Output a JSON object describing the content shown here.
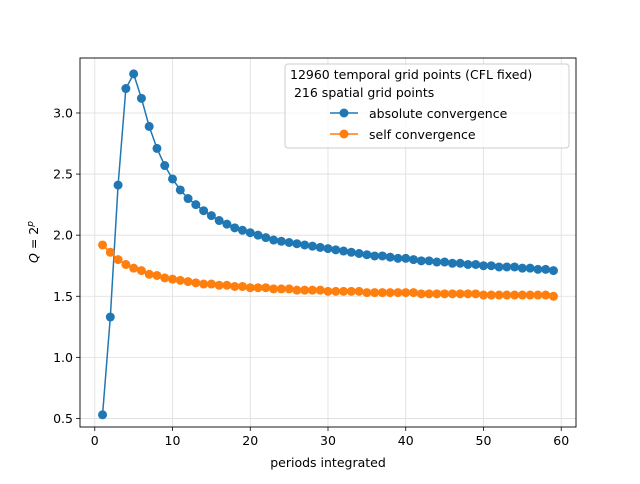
{
  "chart_data": {
    "type": "line",
    "xlabel": "periods integrated",
    "ylabel": "Q = 2^p",
    "xlim": [
      -1.9,
      61.9
    ],
    "ylim": [
      0.43,
      3.45
    ],
    "xticks": [
      0,
      10,
      20,
      30,
      40,
      50,
      60
    ],
    "xtick_labels": [
      "0",
      "10",
      "20",
      "30",
      "40",
      "50",
      "60"
    ],
    "yticks": [
      0.5,
      1.0,
      1.5,
      2.0,
      2.5,
      3.0
    ],
    "ytick_labels": [
      "0.5",
      "1.0",
      "1.5",
      "2.0",
      "2.5",
      "3.0"
    ],
    "grid": true,
    "legend": {
      "placement": "upper-right",
      "title_lines": [
        "12960 temporal grid points (CFL fixed)",
        " 216 spatial grid points"
      ]
    },
    "x": [
      1,
      2,
      3,
      4,
      5,
      6,
      7,
      8,
      9,
      10,
      11,
      12,
      13,
      14,
      15,
      16,
      17,
      18,
      19,
      20,
      21,
      22,
      23,
      24,
      25,
      26,
      27,
      28,
      29,
      30,
      31,
      32,
      33,
      34,
      35,
      36,
      37,
      38,
      39,
      40,
      41,
      42,
      43,
      44,
      45,
      46,
      47,
      48,
      49,
      50,
      51,
      52,
      53,
      54,
      55,
      56,
      57,
      58,
      59
    ],
    "series": [
      {
        "name": "absolute convergence",
        "color": "#1f77b4",
        "values": [
          0.53,
          1.33,
          2.41,
          3.2,
          3.32,
          3.12,
          2.89,
          2.71,
          2.57,
          2.46,
          2.37,
          2.3,
          2.25,
          2.2,
          2.16,
          2.12,
          2.09,
          2.06,
          2.04,
          2.02,
          2.0,
          1.98,
          1.96,
          1.95,
          1.94,
          1.93,
          1.92,
          1.91,
          1.9,
          1.89,
          1.88,
          1.87,
          1.86,
          1.85,
          1.84,
          1.83,
          1.83,
          1.82,
          1.81,
          1.81,
          1.8,
          1.79,
          1.79,
          1.78,
          1.78,
          1.77,
          1.77,
          1.76,
          1.76,
          1.75,
          1.75,
          1.74,
          1.74,
          1.74,
          1.73,
          1.73,
          1.72,
          1.72,
          1.71
        ]
      },
      {
        "name": "self convergence",
        "color": "#ff7f0e",
        "values": [
          1.92,
          1.86,
          1.8,
          1.76,
          1.73,
          1.71,
          1.68,
          1.67,
          1.65,
          1.64,
          1.63,
          1.62,
          1.61,
          1.6,
          1.6,
          1.59,
          1.59,
          1.58,
          1.58,
          1.57,
          1.57,
          1.57,
          1.56,
          1.56,
          1.56,
          1.55,
          1.55,
          1.55,
          1.55,
          1.54,
          1.54,
          1.54,
          1.54,
          1.54,
          1.53,
          1.53,
          1.53,
          1.53,
          1.53,
          1.53,
          1.53,
          1.52,
          1.52,
          1.52,
          1.52,
          1.52,
          1.52,
          1.52,
          1.52,
          1.51,
          1.51,
          1.51,
          1.51,
          1.51,
          1.51,
          1.51,
          1.51,
          1.51,
          1.5
        ]
      }
    ]
  }
}
